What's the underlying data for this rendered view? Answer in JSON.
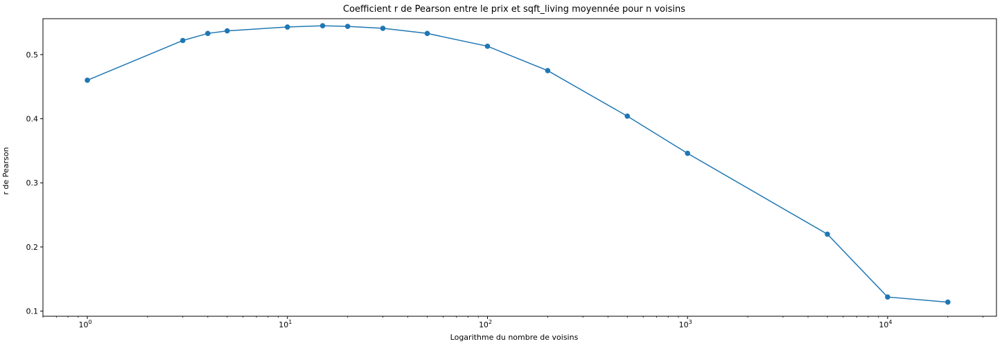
{
  "chart_data": {
    "type": "line",
    "title": "Coefficient r de Pearson entre le prix et sqft_living moyennée pour n voisins",
    "xlabel": "Logarithme du nombre de voisins",
    "ylabel": "r de Pearson",
    "xscale": "log",
    "xlim": [
      0.6,
      35000
    ],
    "ylim": [
      0.092,
      0.556
    ],
    "grid": false,
    "legend": "none",
    "color": "#1f77b4",
    "marker": "circle",
    "x": [
      1,
      3,
      4,
      5,
      10,
      15,
      20,
      30,
      50,
      100,
      200,
      500,
      1000,
      5000,
      10000,
      20000
    ],
    "y": [
      0.46,
      0.522,
      0.533,
      0.537,
      0.543,
      0.545,
      0.544,
      0.541,
      0.533,
      0.513,
      0.475,
      0.404,
      0.346,
      0.22,
      0.122,
      0.114
    ],
    "x_ticks": [
      {
        "value": 1,
        "base": "10",
        "exp": "0"
      },
      {
        "value": 10,
        "base": "10",
        "exp": "1"
      },
      {
        "value": 100,
        "base": "10",
        "exp": "2"
      },
      {
        "value": 1000,
        "base": "10",
        "exp": "3"
      },
      {
        "value": 10000,
        "base": "10",
        "exp": "4"
      }
    ],
    "y_ticks": [
      {
        "value": 0.1,
        "label": "0.1"
      },
      {
        "value": 0.2,
        "label": "0.2"
      },
      {
        "value": 0.3,
        "label": "0.3"
      },
      {
        "value": 0.4,
        "label": "0.4"
      },
      {
        "value": 0.5,
        "label": "0.5"
      }
    ]
  }
}
